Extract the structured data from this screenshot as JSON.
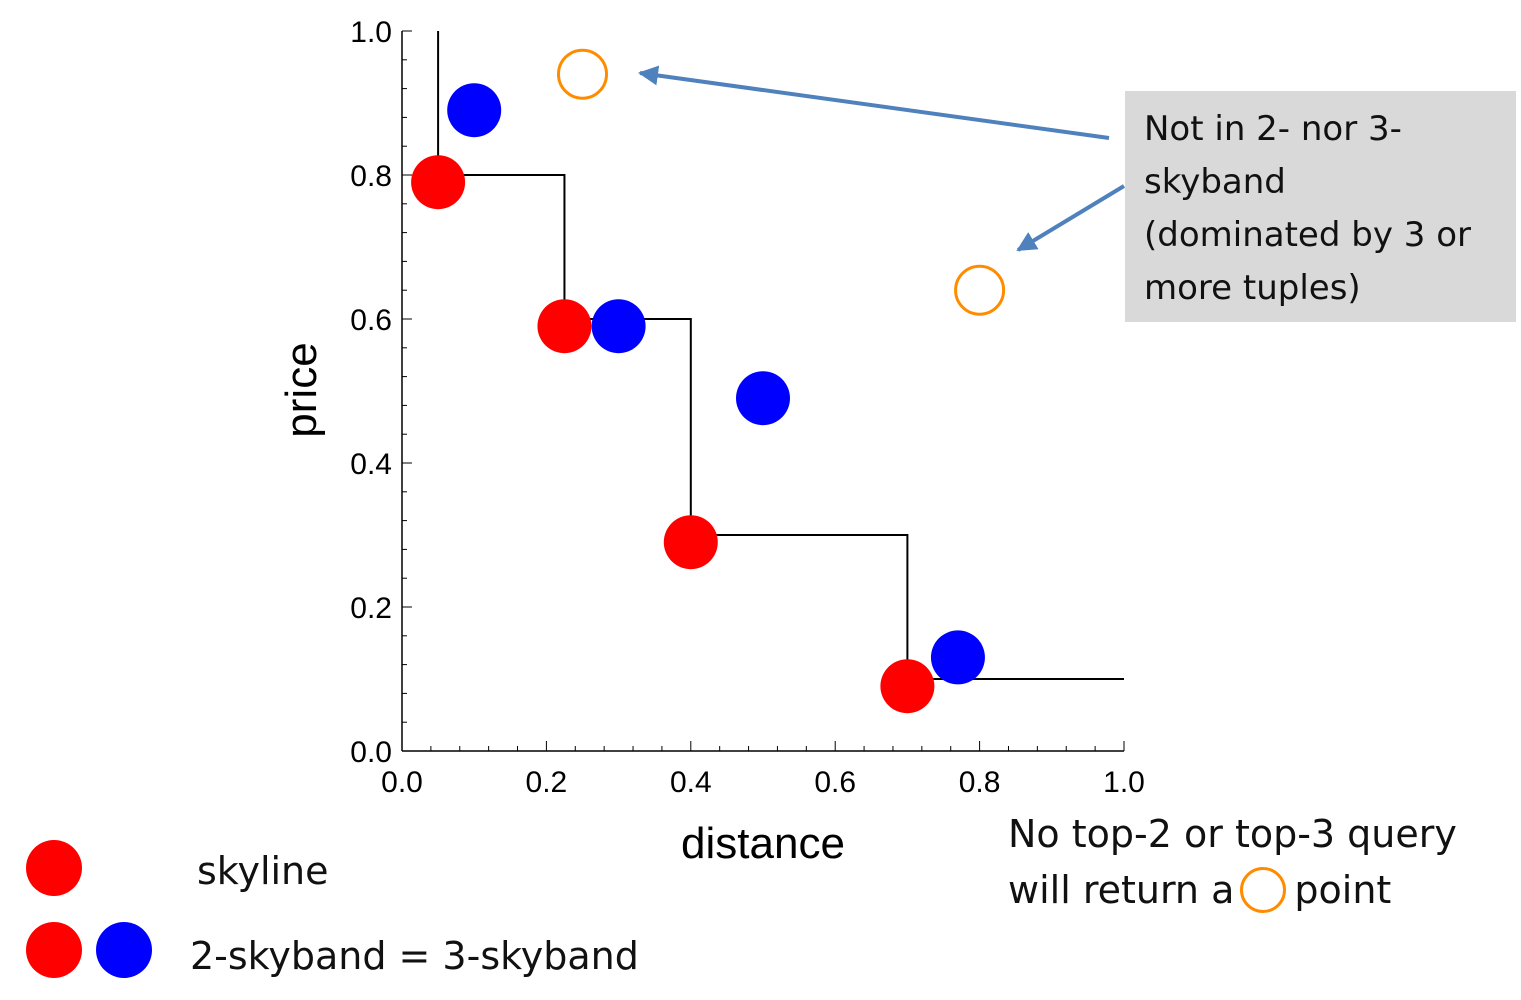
{
  "colors": {
    "skyline": "#ff0000",
    "skyband": "#0000ff",
    "excluded": "#ff8c00",
    "arrow": "#4f81bd",
    "callout_bg": "#d9d9d9"
  },
  "chart_data": {
    "type": "scatter",
    "xlabel": "distance",
    "ylabel": "price",
    "xlim": [
      0,
      1
    ],
    "ylim": [
      0,
      1
    ],
    "x_ticks": [
      "0.0",
      "0.2",
      "0.4",
      "0.6",
      "0.8",
      "1.0"
    ],
    "y_ticks": [
      "0.0",
      "0.2",
      "0.4",
      "0.6",
      "0.8",
      "1.0"
    ],
    "grid": false,
    "series": [
      {
        "name": "skyline",
        "style": "filled-red",
        "points": [
          [
            0.05,
            0.79
          ],
          [
            0.225,
            0.59
          ],
          [
            0.4,
            0.29
          ],
          [
            0.7,
            0.09
          ]
        ]
      },
      {
        "name": "2-skyband = 3-skyband",
        "style": "filled-blue",
        "points": [
          [
            0.1,
            0.89
          ],
          [
            0.3,
            0.59
          ],
          [
            0.5,
            0.49
          ],
          [
            0.77,
            0.13
          ]
        ]
      },
      {
        "style": "hollow-orange",
        "points": [
          [
            0.25,
            0.94
          ],
          [
            0.8,
            0.64
          ]
        ]
      }
    ],
    "skyline_staircase": [
      [
        0.05,
        1.0
      ],
      [
        0.05,
        0.8
      ],
      [
        0.225,
        0.8
      ],
      [
        0.225,
        0.6
      ],
      [
        0.4,
        0.6
      ],
      [
        0.4,
        0.3
      ],
      [
        0.7,
        0.3
      ],
      [
        0.7,
        0.1
      ],
      [
        1.0,
        0.1
      ]
    ]
  },
  "callout": {
    "lines": [
      "Not in 2- nor 3-",
      "skyband",
      "(dominated by 3 or",
      "more tuples)"
    ]
  },
  "note": {
    "line1": "No top-2 or top-3 query",
    "line2_before": "will return a",
    "line2_after": "point"
  },
  "legend": {
    "skyline_label": "skyline",
    "skyband_label": "2-skyband = 3-skyband"
  }
}
